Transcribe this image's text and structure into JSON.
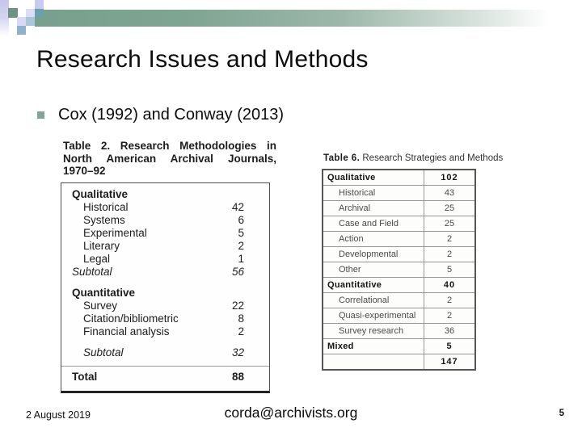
{
  "slide": {
    "title": "Research Issues and Methods",
    "bullet": "Cox (1992) and Conway (2013)",
    "footer": {
      "date": "2 August 2019",
      "email": "corda@archivists.org",
      "page_number": "5"
    }
  },
  "table2": {
    "title_line1": "Table 2. Research Methodologies in",
    "title_line2": "North American Archival Journals,",
    "title_line3": "1970–92",
    "rows": [
      {
        "label": "Qualitative",
        "value": "",
        "bold": true
      },
      {
        "label": "Historical",
        "value": "42",
        "indent": true
      },
      {
        "label": "Systems",
        "value": "6",
        "indent": true
      },
      {
        "label": "Experimental",
        "value": "5",
        "indent": true
      },
      {
        "label": "Literary",
        "value": "2",
        "indent": true
      },
      {
        "label": "Legal",
        "value": "1",
        "indent": true
      },
      {
        "label": "Subtotal",
        "value": "56",
        "italic": true
      },
      {
        "label": "Quantitative",
        "value": "",
        "bold": true,
        "gap": true
      },
      {
        "label": "Survey",
        "value": "22",
        "indent": true
      },
      {
        "label": "Citation/bibliometric",
        "value": "8",
        "indent": true
      },
      {
        "label": "Financial analysis",
        "value": "2",
        "indent": true
      },
      {
        "label": "Subtotal",
        "value": "32",
        "italic": true,
        "indent": true,
        "gap": true
      },
      {
        "label": "Total",
        "value": "88",
        "bold": true,
        "rule": true
      }
    ]
  },
  "table6": {
    "title_bold": "Table 6.",
    "title_rest": " Research Strategies and Methods",
    "rows": [
      {
        "label": "Qualitative",
        "value": "102",
        "bold": true
      },
      {
        "label": "Historical",
        "value": "43"
      },
      {
        "label": "Archival",
        "value": "25"
      },
      {
        "label": "Case and Field",
        "value": "25"
      },
      {
        "label": "Action",
        "value": "2"
      },
      {
        "label": "Developmental",
        "value": "2"
      },
      {
        "label": "Other",
        "value": "5"
      },
      {
        "label": "Quantitative",
        "value": "40",
        "bold": true
      },
      {
        "label": "Correlational",
        "value": "2"
      },
      {
        "label": "Quasi-experimental",
        "value": "2"
      },
      {
        "label": "Survey research",
        "value": "36"
      },
      {
        "label": "Mixed",
        "value": "5",
        "bold": true
      },
      {
        "label": "",
        "value": "147",
        "bold": true
      }
    ]
  },
  "colors": {
    "accent_green_bar": "#78a08d",
    "accent_lavender": "#c6c6ee",
    "accent_steel_blue": "#8fb1cc",
    "accent_teal_square": "#6da0ad",
    "bullet_green": "#84a495"
  }
}
